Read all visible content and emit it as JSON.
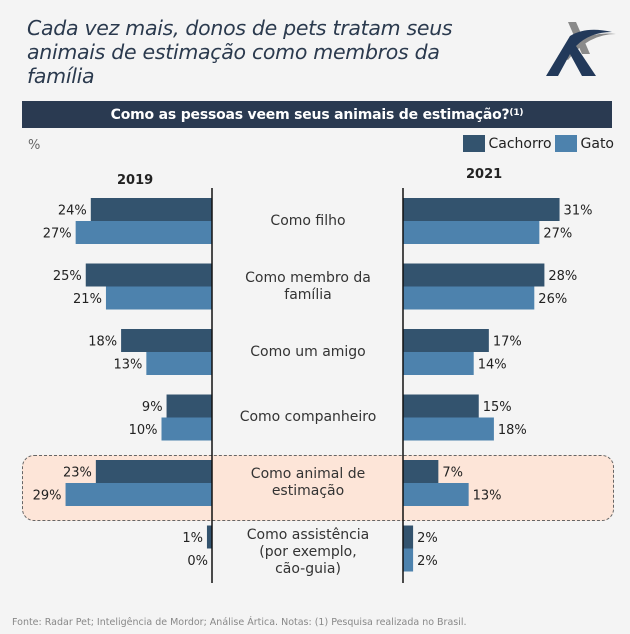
{
  "title": "Cada vez mais, donos de pets tratam seus animais de estimação como membros da família",
  "logo": "artica-logo-icon",
  "header": {
    "text": "Como as pessoas veem seus animais de estimação?",
    "note_marker": "(1)"
  },
  "unit": "%",
  "legend": [
    {
      "label": "Cachorro",
      "color": "#33536e"
    },
    {
      "label": "Gato",
      "color": "#4d82ad"
    }
  ],
  "highlight_category": "Como animal de estimação",
  "source": "Fonte: Radar Pet; Inteligência de Mordor; Análise Ártica. Notas: (1) Pesquisa realizada no Brasil.",
  "chart_data": {
    "type": "bar",
    "orientation": "horizontal-butterfly",
    "title": "Como as pessoas veem seus animais de estimação?",
    "unit": "%",
    "panels": [
      "2019",
      "2021"
    ],
    "categories": [
      "Como filho",
      "Como membro da família",
      "Como um amigo",
      "Como companheiro",
      "Como animal de estimação",
      "Como assistência (por exemplo, cão-guia)"
    ],
    "category_labels": [
      [
        "Como filho"
      ],
      [
        "Como membro da",
        "família"
      ],
      [
        "Como um amigo"
      ],
      [
        "Como companheiro"
      ],
      [
        "Como animal de",
        "estimação"
      ],
      [
        "Como assistência",
        "(por exemplo,",
        "cão-guia)"
      ]
    ],
    "series": [
      {
        "name": "Cachorro",
        "color": "#33536e",
        "panel": "2019",
        "values": [
          24,
          25,
          18,
          9,
          23,
          1
        ]
      },
      {
        "name": "Gato",
        "color": "#4d82ad",
        "panel": "2019",
        "values": [
          27,
          21,
          13,
          10,
          29,
          0
        ]
      },
      {
        "name": "Cachorro",
        "color": "#33536e",
        "panel": "2021",
        "values": [
          31,
          28,
          17,
          15,
          7,
          2
        ]
      },
      {
        "name": "Gato",
        "color": "#4d82ad",
        "panel": "2021",
        "values": [
          27,
          26,
          14,
          18,
          13,
          2
        ]
      }
    ],
    "legend_position": "top-right",
    "grid": false
  }
}
